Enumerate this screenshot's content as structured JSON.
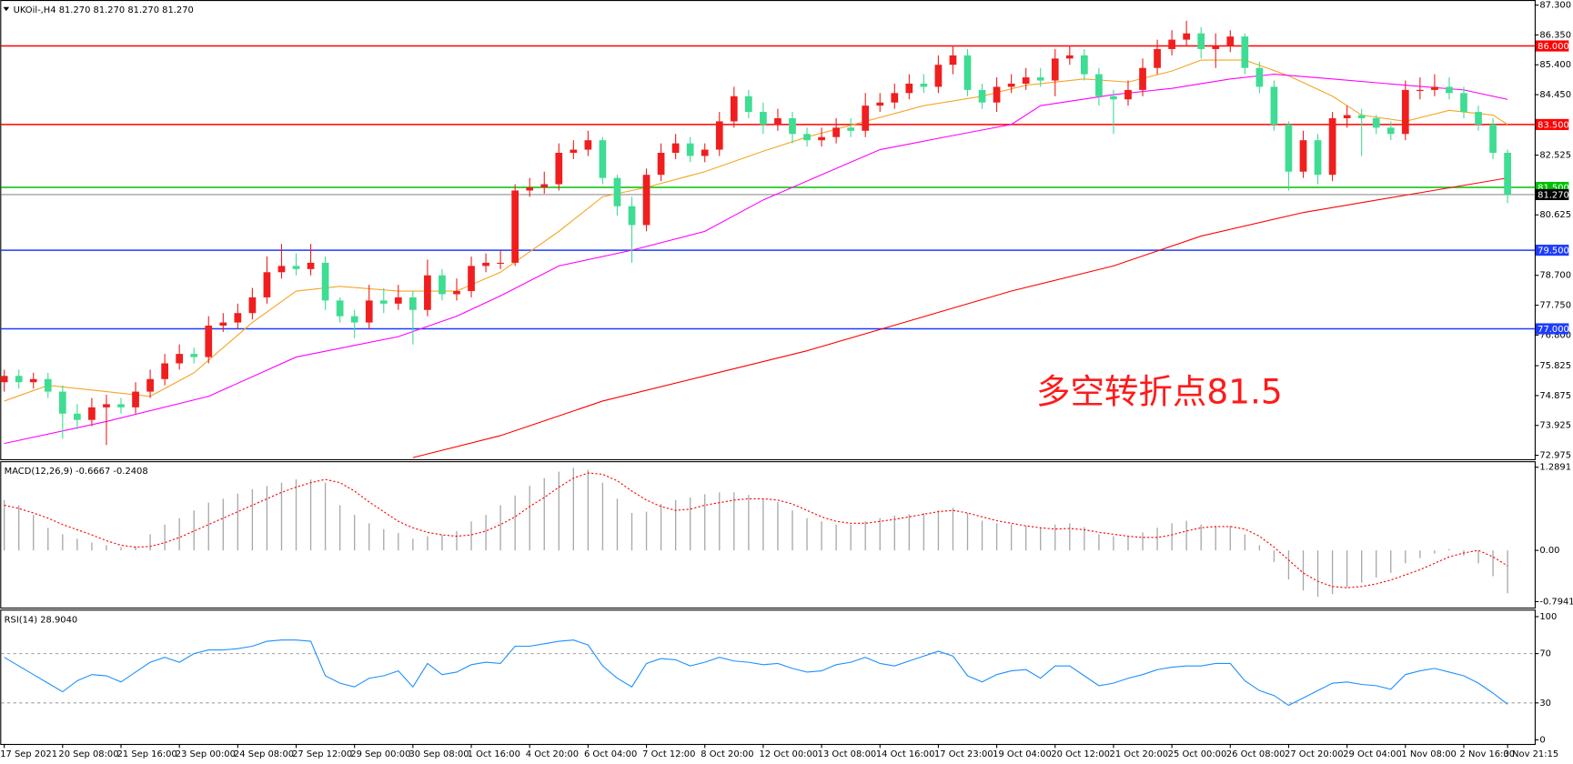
{
  "chart_data": [
    {
      "type": "candlestick",
      "title": "UKOil-,H4  81.270 81.270 81.270 81.270",
      "categories": [
        "17 Sep 2021",
        null,
        null,
        null,
        "20 Sep 08:00",
        null,
        null,
        null,
        "21 Sep 16:00",
        null,
        null,
        null,
        "23 Sep 00:00",
        null,
        null,
        null,
        "24 Sep 08:00",
        null,
        null,
        null,
        "27 Sep 12:00",
        null,
        null,
        null,
        "29 Sep 00:00",
        null,
        null,
        null,
        "30 Sep 08:00",
        null,
        null,
        null,
        "1 Oct 16:00",
        null,
        null,
        null,
        "4 Oct 20:00",
        null,
        null,
        null,
        "6 Oct 04:00",
        null,
        null,
        null,
        "7 Oct 12:00",
        null,
        null,
        null,
        "8 Oct 20:00",
        null,
        null,
        null,
        "12 Oct 00:00",
        null,
        null,
        null,
        "13 Oct 08:00",
        null,
        null,
        null,
        "14 Oct 16:00",
        null,
        null,
        null,
        "17 Oct 23:00",
        null,
        null,
        null,
        "19 Oct 04:00",
        null,
        null,
        null,
        "20 Oct 12:00",
        null,
        null,
        null,
        "21 Oct 20:00",
        null,
        null,
        null,
        "25 Oct 00:00",
        null,
        null,
        null,
        "26 Oct 08:00",
        null,
        null,
        null,
        "27 Oct 20:00",
        null,
        null,
        null,
        "29 Oct 04:00",
        null,
        null,
        null,
        "1 Nov 08:00",
        null,
        null,
        null,
        "2 Nov 16:00",
        null,
        null,
        "3 Nov 21:15"
      ],
      "open": [
        75.3,
        75.5,
        75.3,
        75.4,
        75.0,
        74.3,
        74.1,
        74.5,
        74.6,
        74.5,
        75.0,
        75.4,
        75.9,
        76.2,
        76.1,
        77.1,
        77.2,
        77.5,
        78.0,
        78.8,
        79.0,
        78.9,
        79.1,
        77.9,
        77.4,
        77.2,
        77.9,
        77.8,
        78.0,
        77.6,
        78.7,
        78.1,
        78.2,
        79.0,
        79.1,
        79.1,
        81.4,
        81.5,
        81.6,
        82.6,
        82.7,
        83.0,
        81.8,
        80.9,
        80.3,
        81.9,
        82.6,
        82.9,
        82.5,
        82.7,
        83.6,
        84.4,
        83.9,
        83.5,
        83.7,
        83.2,
        83.0,
        83.1,
        83.4,
        83.3,
        84.1,
        84.2,
        84.5,
        84.8,
        84.7,
        85.4,
        85.7,
        84.6,
        84.2,
        84.7,
        84.8,
        85.0,
        84.9,
        85.6,
        85.7,
        85.1,
        84.4,
        84.3,
        84.6,
        85.3,
        85.9,
        86.2,
        86.4,
        85.9,
        86.0,
        86.3,
        85.3,
        84.7,
        83.5,
        82.0,
        83.0,
        81.9,
        83.7,
        83.8,
        83.7,
        83.4,
        83.2,
        84.6,
        84.6,
        84.7,
        84.5,
        83.9,
        83.5,
        82.6
      ],
      "high": [
        75.7,
        75.7,
        75.6,
        75.6,
        75.2,
        74.6,
        74.8,
        74.9,
        74.8,
        75.3,
        75.7,
        76.2,
        76.5,
        76.4,
        77.4,
        77.5,
        77.8,
        78.3,
        79.3,
        79.7,
        79.4,
        79.7,
        79.3,
        78.0,
        77.6,
        78.4,
        78.3,
        78.4,
        78.2,
        79.2,
        78.9,
        78.6,
        79.3,
        79.4,
        79.5,
        81.6,
        81.8,
        82.0,
        82.9,
        83.0,
        83.3,
        83.1,
        81.9,
        81.2,
        82.1,
        82.9,
        83.2,
        83.1,
        82.9,
        83.9,
        84.7,
        84.6,
        84.2,
        84.0,
        83.9,
        83.4,
        83.4,
        83.7,
        83.7,
        84.5,
        84.5,
        84.8,
        85.1,
        85.1,
        85.7,
        86.0,
        85.9,
        84.8,
        85.0,
        85.1,
        85.3,
        85.3,
        85.9,
        86.0,
        85.9,
        85.3,
        84.6,
        84.9,
        85.6,
        86.2,
        86.5,
        86.8,
        86.6,
        86.4,
        86.5,
        86.4,
        85.5,
        84.9,
        83.6,
        83.3,
        83.2,
        83.9,
        84.1,
        84.0,
        83.8,
        83.6,
        84.9,
        85.0,
        85.1,
        85.0,
        84.7,
        84.1,
        83.7,
        82.7
      ],
      "low": [
        75.0,
        75.1,
        75.1,
        74.8,
        73.5,
        73.8,
        73.9,
        73.3,
        74.3,
        74.3,
        74.8,
        75.2,
        75.7,
        75.9,
        75.9,
        76.9,
        77.0,
        77.3,
        77.8,
        78.6,
        78.7,
        78.7,
        77.6,
        77.2,
        76.7,
        77.0,
        77.5,
        77.6,
        76.5,
        77.4,
        77.9,
        77.9,
        78.0,
        78.8,
        78.9,
        79.0,
        81.2,
        81.3,
        81.4,
        82.4,
        82.5,
        81.6,
        80.6,
        79.1,
        80.1,
        81.7,
        82.4,
        82.3,
        82.3,
        82.5,
        83.4,
        83.7,
        83.2,
        83.3,
        82.9,
        82.8,
        82.8,
        82.9,
        83.1,
        83.1,
        83.9,
        84.0,
        84.3,
        84.5,
        84.5,
        85.1,
        84.4,
        84.0,
        83.9,
        84.5,
        84.6,
        84.7,
        84.4,
        85.4,
        84.9,
        84.1,
        83.2,
        84.1,
        84.4,
        85.1,
        85.7,
        86.0,
        85.6,
        85.3,
        85.8,
        85.1,
        84.5,
        83.3,
        81.4,
        81.8,
        81.6,
        81.7,
        83.4,
        82.5,
        83.2,
        83.0,
        83.0,
        84.3,
        84.4,
        84.3,
        83.7,
        83.3,
        82.4,
        81.0
      ],
      "close": [
        75.5,
        75.3,
        75.4,
        75.0,
        74.3,
        74.1,
        74.5,
        74.6,
        74.5,
        75.0,
        75.4,
        75.9,
        76.2,
        76.1,
        77.1,
        77.2,
        77.5,
        78.0,
        78.8,
        79.0,
        78.9,
        79.1,
        77.9,
        77.4,
        77.2,
        77.9,
        77.8,
        78.0,
        77.6,
        78.7,
        78.1,
        78.2,
        79.0,
        79.1,
        79.1,
        81.4,
        81.5,
        81.6,
        82.6,
        82.7,
        83.0,
        81.8,
        80.9,
        80.3,
        81.9,
        82.6,
        82.9,
        82.5,
        82.7,
        83.6,
        84.4,
        83.9,
        83.5,
        83.7,
        83.2,
        83.0,
        83.1,
        83.4,
        83.3,
        84.1,
        84.2,
        84.5,
        84.8,
        84.7,
        85.4,
        85.7,
        84.6,
        84.2,
        84.7,
        84.8,
        85.0,
        84.9,
        85.6,
        85.7,
        85.1,
        84.4,
        84.3,
        84.6,
        85.3,
        85.9,
        86.2,
        86.4,
        85.9,
        86.0,
        86.3,
        85.3,
        84.7,
        83.5,
        82.0,
        83.0,
        81.9,
        83.7,
        83.8,
        83.7,
        83.4,
        83.2,
        84.6,
        84.6,
        84.7,
        84.5,
        83.9,
        83.5,
        82.6,
        81.27
      ],
      "up_color": "#f01e1e",
      "down_color": "#3fdc93",
      "series": [
        {
          "color": "#f5a623",
          "x": [
            0,
            3,
            7,
            10,
            13,
            17,
            20,
            23,
            27,
            31,
            34,
            38,
            41,
            44,
            48,
            52,
            55,
            59,
            63,
            67,
            70,
            74,
            77,
            80,
            82,
            85,
            88,
            91,
            93,
            96,
            99,
            102,
            103
          ],
          "values": [
            74.7,
            75.2,
            75.0,
            74.85,
            75.6,
            77.2,
            78.2,
            78.35,
            78.2,
            78.2,
            78.8,
            80.1,
            81.2,
            81.5,
            82.0,
            82.65,
            83.1,
            83.6,
            84.1,
            84.4,
            84.75,
            84.95,
            84.85,
            85.2,
            85.55,
            85.55,
            85.05,
            84.4,
            83.8,
            83.6,
            83.95,
            83.8,
            83.5
          ]
        },
        {
          "color": "#ff00ff",
          "x": [
            0,
            7,
            14,
            20,
            27,
            31,
            34,
            38,
            43,
            48,
            52,
            56,
            60,
            65,
            69,
            71,
            76,
            80,
            84,
            87,
            91,
            96,
            100,
            103
          ],
          "values": [
            73.35,
            74.05,
            74.85,
            76.1,
            76.75,
            77.4,
            78.05,
            79.0,
            79.5,
            80.1,
            81.1,
            81.9,
            82.7,
            83.15,
            83.5,
            84.1,
            84.45,
            84.65,
            84.95,
            85.1,
            84.95,
            84.75,
            84.6,
            84.3
          ]
        },
        {
          "color": "#ff0000",
          "x": [
            28,
            34,
            41,
            48,
            55,
            62,
            69,
            76,
            82,
            89,
            96,
            103
          ],
          "values": [
            72.9,
            73.6,
            74.7,
            75.5,
            76.3,
            77.25,
            78.2,
            79.0,
            79.95,
            80.7,
            81.25,
            81.8
          ]
        }
      ],
      "levels": [
        {
          "value": 86,
          "label": "86.000",
          "color": "#ff0000"
        },
        {
          "value": 83.5,
          "label": "83.500",
          "color": "#ff0000"
        },
        {
          "value": 81.5,
          "label": "81.500",
          "color": "#00c000"
        },
        {
          "value": 79.5,
          "label": "79.500",
          "color": "#1e3cff"
        },
        {
          "value": 77,
          "label": "77.000",
          "color": "#1e3cff"
        }
      ],
      "last_price": {
        "value": 81.27,
        "label": "81.270",
        "color": "#000000"
      },
      "annotation": {
        "text": "多空转折点81.5",
        "color": "#ff1a1a"
      },
      "ylim": [
        72.85,
        87.43
      ],
      "yticks": [
        {
          "value": 87.3,
          "label": "87.300"
        },
        {
          "value": 86.35,
          "label": "86.350"
        },
        {
          "value": 85.4,
          "label": "85.400"
        },
        {
          "value": 84.45,
          "label": "84.450"
        },
        {
          "value": 82.525,
          "label": "82.525"
        },
        {
          "value": 80.625,
          "label": "80.625"
        },
        {
          "value": 78.7,
          "label": "78.700"
        },
        {
          "value": 77.75,
          "label": "77.750"
        },
        {
          "value": 76.8,
          "label": "76.800"
        },
        {
          "value": 75.825,
          "label": "75.825"
        },
        {
          "value": 74.875,
          "label": "74.875"
        },
        {
          "value": 73.925,
          "label": "73.925"
        },
        {
          "value": 72.975,
          "label": "72.975"
        }
      ]
    },
    {
      "type": "macd",
      "title": "MACD(12,26,9) -0.6667 -0.2408",
      "color": "#a8a8a8",
      "values": [
        0.78,
        0.7,
        0.55,
        0.35,
        0.25,
        0.18,
        0.12,
        0.08,
        0.05,
        0.06,
        0.25,
        0.4,
        0.5,
        0.62,
        0.74,
        0.8,
        0.88,
        0.95,
        1.0,
        1.05,
        1.1,
        1.1,
        1.05,
        0.7,
        0.55,
        0.42,
        0.33,
        0.27,
        0.18,
        0.22,
        0.24,
        0.3,
        0.45,
        0.55,
        0.7,
        0.85,
        1.0,
        1.12,
        1.22,
        1.28,
        1.25,
        1.05,
        0.8,
        0.58,
        0.6,
        0.72,
        0.78,
        0.82,
        0.87,
        0.9,
        0.9,
        0.86,
        0.8,
        0.75,
        0.62,
        0.5,
        0.45,
        0.4,
        0.4,
        0.45,
        0.5,
        0.54,
        0.56,
        0.58,
        0.62,
        0.66,
        0.58,
        0.46,
        0.42,
        0.4,
        0.38,
        0.35,
        0.4,
        0.42,
        0.36,
        0.25,
        0.22,
        0.22,
        0.28,
        0.35,
        0.42,
        0.46,
        0.4,
        0.38,
        0.38,
        0.25,
        0.08,
        -0.18,
        -0.45,
        -0.62,
        -0.72,
        -0.68,
        -0.58,
        -0.5,
        -0.42,
        -0.35,
        -0.2,
        -0.12,
        -0.05,
        0.02,
        -0.08,
        -0.2,
        -0.4,
        -0.6667
      ],
      "series": [
        {
          "color": "#ff0000",
          "dashed": true,
          "values": [
            0.7,
            0.65,
            0.58,
            0.5,
            0.4,
            0.32,
            0.24,
            0.15,
            0.08,
            0.05,
            0.06,
            0.12,
            0.2,
            0.3,
            0.4,
            0.5,
            0.6,
            0.7,
            0.8,
            0.9,
            0.98,
            1.05,
            1.1,
            1.05,
            0.92,
            0.75,
            0.6,
            0.45,
            0.35,
            0.28,
            0.24,
            0.22,
            0.24,
            0.3,
            0.4,
            0.52,
            0.68,
            0.82,
            0.98,
            1.12,
            1.2,
            1.18,
            1.08,
            0.92,
            0.78,
            0.68,
            0.62,
            0.64,
            0.7,
            0.74,
            0.78,
            0.8,
            0.8,
            0.78,
            0.72,
            0.62,
            0.52,
            0.45,
            0.42,
            0.42,
            0.45,
            0.48,
            0.52,
            0.56,
            0.6,
            0.62,
            0.58,
            0.52,
            0.46,
            0.42,
            0.38,
            0.35,
            0.33,
            0.34,
            0.32,
            0.28,
            0.25,
            0.22,
            0.2,
            0.2,
            0.24,
            0.3,
            0.35,
            0.37,
            0.37,
            0.33,
            0.22,
            0.05,
            -0.15,
            -0.35,
            -0.48,
            -0.56,
            -0.58,
            -0.56,
            -0.52,
            -0.46,
            -0.38,
            -0.3,
            -0.2,
            -0.1,
            -0.04,
            0.0,
            -0.1,
            -0.2408
          ]
        }
      ],
      "ylim": [
        -0.887,
        1.367
      ],
      "yticks": [
        1.2891,
        {
          "value": 0,
          "label": "0.00"
        },
        -0.7941
      ]
    },
    {
      "type": "line",
      "title": "RSI(14) 28.9040",
      "series": [
        {
          "color": "#1e90ff",
          "values": [
            67,
            60,
            53,
            46,
            39,
            48,
            53,
            52,
            47,
            55,
            63,
            67,
            63,
            70,
            73,
            73,
            74,
            76,
            80,
            81,
            81,
            80,
            52,
            46,
            43,
            50,
            52,
            56,
            43,
            62,
            53,
            55,
            61,
            63,
            62,
            76,
            76,
            78,
            80,
            81,
            77,
            60,
            50,
            43,
            62,
            66,
            65,
            60,
            63,
            67,
            64,
            63,
            61,
            62,
            58,
            55,
            56,
            61,
            63,
            67,
            62,
            60,
            64,
            68,
            72,
            68,
            52,
            47,
            53,
            56,
            57,
            50,
            60,
            60,
            52,
            44,
            46,
            50,
            53,
            57,
            59,
            60,
            60,
            62,
            62,
            48,
            40,
            36,
            28,
            34,
            40,
            46,
            47,
            45,
            44,
            41,
            53,
            56,
            58,
            55,
            52,
            46,
            38,
            28.904
          ]
        }
      ],
      "levels": [
        70,
        30
      ],
      "ylim": [
        -3.3,
        104.9
      ],
      "yticks": [
        100,
        70,
        30,
        0
      ]
    }
  ]
}
